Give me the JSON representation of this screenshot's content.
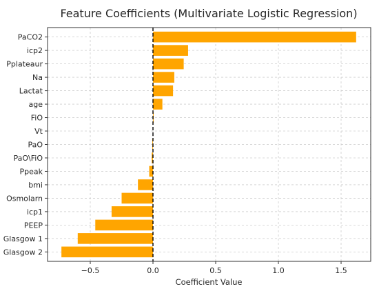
{
  "chart_data": {
    "type": "bar",
    "orientation": "horizontal",
    "title": "Feature Coefficients (Multivariate Logistic Regression)",
    "xlabel": "Coefficient Value",
    "ylabel": "",
    "xlim": [
      -0.8,
      1.7
    ],
    "xticks": [
      -0.5,
      0.0,
      0.5,
      1.0,
      1.5
    ],
    "xtick_labels": [
      "−0.5",
      "0.0",
      "0.5",
      "1.0",
      "1.5"
    ],
    "grid": true,
    "zero_line": "dashed",
    "categories": [
      "PaCO2",
      "icp2",
      "Pplateaur",
      "Na",
      "Lactat",
      "age",
      "FiO",
      "Vt",
      "PaO",
      "PaO\\FiO",
      "Ppeak",
      "bmi",
      "Osmolarn",
      "icp1",
      "PEEP",
      "Glasgow 1",
      "Glasgow 2"
    ],
    "values": [
      1.62,
      0.28,
      0.245,
      0.17,
      0.16,
      0.075,
      0.005,
      0.0,
      -0.005,
      -0.01,
      -0.03,
      -0.12,
      -0.25,
      -0.33,
      -0.46,
      -0.6,
      -0.73
    ],
    "bar_color": "#ffa500"
  }
}
